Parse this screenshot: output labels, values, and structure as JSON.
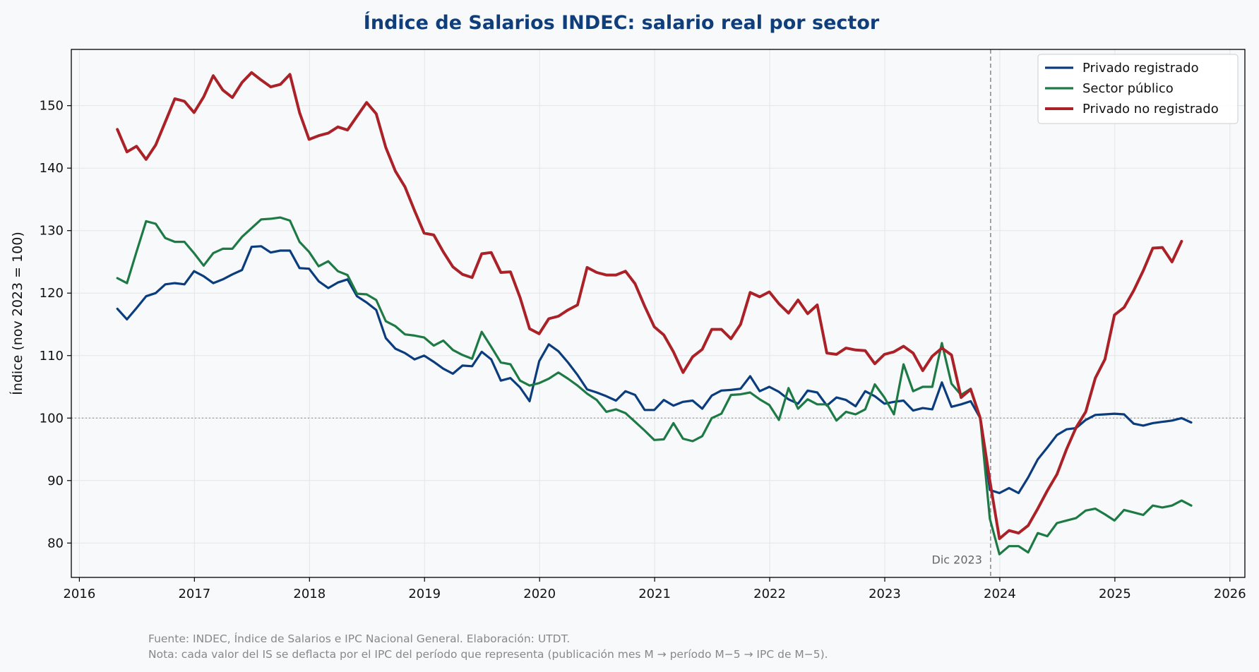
{
  "chart_data": {
    "type": "line",
    "title": "Índice de Salarios INDEC: salario real por sector",
    "ylabel": "Índice (nov 2023 = 100)",
    "xlabel": "",
    "xlim": [
      2015.93,
      2026.13
    ],
    "ylim": [
      74.5,
      159
    ],
    "xticks": [
      2016,
      2017,
      2018,
      2019,
      2020,
      2021,
      2022,
      2023,
      2024,
      2025,
      2026
    ],
    "yticks": [
      80,
      90,
      100,
      110,
      120,
      130,
      140,
      150
    ],
    "grid": true,
    "legend_position": "top-right",
    "reference_line_y": 100,
    "vline": {
      "x": 2023.92,
      "label": "Dic 2023"
    },
    "x_start": 2016.33,
    "x_step_months": 1,
    "series": [
      {
        "name": "Privado registrado",
        "color": "#0b3d7e",
        "values": [
          117.5,
          115.8,
          117.6,
          119.5,
          120.0,
          121.4,
          121.6,
          121.4,
          123.5,
          122.7,
          121.6,
          122.2,
          123.0,
          123.7,
          127.4,
          127.5,
          126.5,
          126.8,
          126.8,
          124.0,
          123.9,
          121.9,
          120.8,
          121.7,
          122.2,
          119.5,
          118.5,
          117.3,
          112.8,
          111.1,
          110.4,
          109.4,
          110.0,
          109.0,
          107.9,
          107.1,
          108.4,
          108.3,
          110.6,
          109.4,
          106.0,
          106.4,
          104.9,
          102.7,
          109.1,
          111.8,
          110.7,
          108.9,
          106.9,
          104.6,
          104.1,
          103.5,
          102.8,
          104.3,
          103.7,
          101.3,
          101.3,
          102.9,
          102.0,
          102.6,
          102.8,
          101.5,
          103.6,
          104.4,
          104.5,
          104.7,
          106.7,
          104.3,
          105.0,
          104.2,
          103.0,
          102.3,
          104.4,
          104.1,
          102.0,
          103.3,
          102.9,
          101.9,
          104.3,
          103.5,
          102.3,
          102.6,
          102.8,
          101.2,
          101.6,
          101.4,
          105.7,
          101.8,
          102.2,
          102.7,
          100.0,
          88.5,
          88.0,
          88.8,
          88.0,
          90.5,
          93.4,
          95.3,
          97.3,
          98.2,
          98.4,
          99.7,
          100.5,
          100.6,
          100.7,
          100.6,
          99.1,
          98.8,
          99.2,
          99.4,
          99.6,
          100.0,
          99.3
        ]
      },
      {
        "name": "Sector público",
        "color": "#1e7a45",
        "values": [
          122.4,
          121.6,
          126.6,
          131.5,
          131.1,
          128.8,
          128.2,
          128.2,
          126.4,
          124.4,
          126.4,
          127.1,
          127.1,
          129.0,
          130.4,
          131.8,
          131.9,
          132.1,
          131.6,
          128.2,
          126.6,
          124.3,
          125.1,
          123.5,
          122.9,
          119.9,
          119.8,
          118.9,
          115.5,
          114.7,
          113.4,
          113.2,
          112.9,
          111.6,
          112.4,
          110.9,
          110.1,
          109.5,
          113.8,
          111.4,
          108.9,
          108.6,
          106.0,
          105.2,
          105.6,
          106.3,
          107.3,
          106.3,
          105.2,
          103.9,
          102.9,
          101.0,
          101.4,
          100.8,
          99.4,
          98.0,
          96.5,
          96.6,
          99.2,
          96.7,
          96.3,
          97.1,
          100.0,
          100.7,
          103.7,
          103.8,
          104.1,
          103.0,
          102.1,
          99.7,
          104.8,
          101.5,
          103.0,
          102.2,
          102.2,
          99.6,
          101.0,
          100.6,
          101.4,
          105.4,
          103.3,
          100.6,
          108.6,
          104.3,
          105.0,
          105.0,
          112.0,
          105.5,
          103.7,
          104.7,
          100.0,
          83.9,
          78.2,
          79.5,
          79.5,
          78.5,
          81.6,
          81.1,
          83.2,
          83.6,
          84.0,
          85.2,
          85.5,
          84.6,
          83.6,
          85.3,
          84.9,
          84.5,
          86.0,
          85.7,
          86.0,
          86.8,
          86.0
        ]
      },
      {
        "name": "Privado no registrado",
        "color": "#aa2227",
        "values": [
          146.2,
          142.6,
          143.5,
          141.4,
          143.7,
          147.4,
          151.1,
          150.7,
          148.9,
          151.4,
          154.8,
          152.5,
          151.3,
          153.7,
          155.3,
          154.1,
          153.0,
          153.4,
          155.0,
          148.9,
          144.6,
          145.2,
          145.6,
          146.6,
          146.1,
          148.3,
          150.5,
          148.7,
          143.3,
          139.5,
          137.0,
          133.2,
          129.6,
          129.3,
          126.6,
          124.2,
          123.0,
          122.5,
          126.3,
          126.5,
          123.3,
          123.4,
          119.3,
          114.3,
          113.5,
          115.9,
          116.3,
          117.3,
          118.1,
          124.1,
          123.3,
          122.9,
          122.9,
          123.5,
          121.5,
          117.9,
          114.6,
          113.3,
          110.6,
          107.3,
          109.8,
          111.0,
          114.2,
          114.2,
          112.7,
          115.0,
          120.1,
          119.4,
          120.2,
          118.3,
          116.8,
          118.9,
          116.7,
          118.1,
          110.4,
          110.2,
          111.2,
          110.9,
          110.8,
          108.7,
          110.2,
          110.6,
          111.5,
          110.4,
          107.6,
          109.9,
          111.2,
          110.1,
          103.3,
          104.6,
          100.0,
          90.0,
          80.7,
          82.0,
          81.6,
          82.8,
          85.5,
          88.4,
          91.0,
          95.0,
          98.5,
          101.0,
          106.4,
          109.4,
          116.5,
          117.7,
          120.4,
          123.6,
          127.2,
          127.3,
          125.0,
          128.3
        ]
      }
    ]
  },
  "footer": {
    "source": "Fuente: INDEC, Índice de Salarios e IPC Nacional General. Elaboración: UTDT.",
    "note": "Nota: cada valor del IS se deflacta por el IPC del período que representa (publicación mes M → período M−5 → IPC de M−5)."
  }
}
